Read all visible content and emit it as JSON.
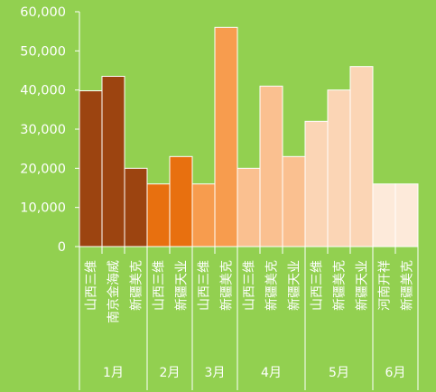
{
  "chart_data": {
    "type": "bar",
    "ylim": [
      0,
      60000
    ],
    "yticks": [
      "0",
      "10,000",
      "20,000",
      "30,000",
      "40,000",
      "50,000",
      "60,000"
    ],
    "ytick_values": [
      0,
      10000,
      20000,
      30000,
      40000,
      50000,
      60000
    ],
    "grid": false,
    "background_color": "#92D050",
    "groups": [
      {
        "label": "1月",
        "color": "#9C4410",
        "items": [
          {
            "category": "山西三维",
            "value": 39800
          },
          {
            "category": "南京金海威",
            "value": 43500
          },
          {
            "category": "新疆美克",
            "value": 20000
          }
        ]
      },
      {
        "label": "2月",
        "color": "#E8700F",
        "items": [
          {
            "category": "山西三维",
            "value": 16000
          },
          {
            "category": "新疆天业",
            "value": 23000
          }
        ]
      },
      {
        "label": "3月",
        "color": "#F79C4E",
        "items": [
          {
            "category": "山西三维",
            "value": 16000
          },
          {
            "category": "新疆美克",
            "value": 56000
          }
        ]
      },
      {
        "label": "4月",
        "color": "#FAC090",
        "items": [
          {
            "category": "山西三维",
            "value": 20000
          },
          {
            "category": "新疆美克",
            "value": 41000
          },
          {
            "category": "新疆天业",
            "value": 23000
          }
        ]
      },
      {
        "label": "5月",
        "color": "#FBD5B5",
        "items": [
          {
            "category": "山西三维",
            "value": 32000
          },
          {
            "category": "新疆美克",
            "value": 40000
          },
          {
            "category": "新疆天业",
            "value": 46000
          }
        ]
      },
      {
        "label": "6月",
        "color": "#FDEADA",
        "items": [
          {
            "category": "河南开祥",
            "value": 16000
          },
          {
            "category": "新疆美克",
            "value": 16000
          }
        ]
      }
    ]
  }
}
